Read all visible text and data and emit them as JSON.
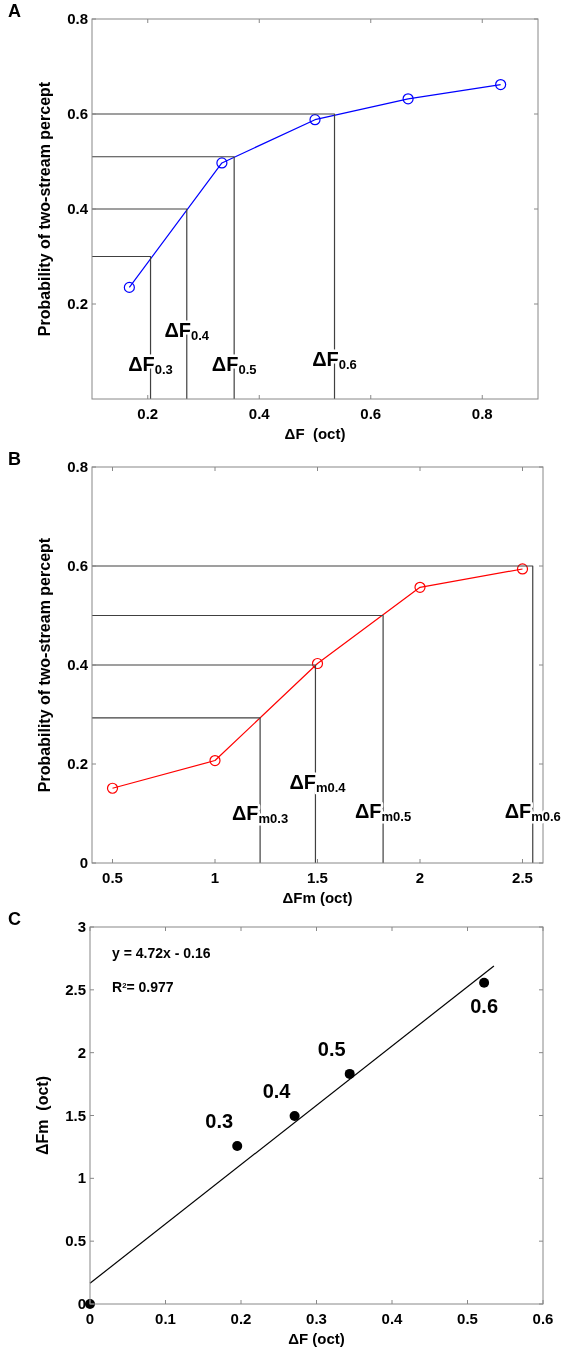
{
  "chart_data": [
    {
      "type": "line",
      "title": "A",
      "xlabel": "ΔF  (oct)",
      "ylabel": "Probability of two-stream percept",
      "xlim": [
        0.1,
        0.9
      ],
      "xticks": [
        0.2,
        0.4,
        0.6,
        0.8
      ],
      "ylim": [
        0,
        0.8
      ],
      "yticks": [
        0.2,
        0.4,
        0.6,
        0.8
      ],
      "grid": false,
      "series": [
        {
          "color": "#0000ff",
          "marker": "circle",
          "x": [
            0.167,
            0.333,
            0.5,
            0.667,
            0.833
          ],
          "values": [
            0.235,
            0.497,
            0.588,
            0.632,
            0.662
          ]
        },
        {
          "color": "#404040",
          "marker": "none",
          "x": [
            0.1,
            0.205,
            0.205
          ],
          "values": [
            0.3,
            0.3,
            0
          ]
        },
        {
          "color": "#404040",
          "marker": "none",
          "x": [
            0.1,
            0.27,
            0.27
          ],
          "values": [
            0.4,
            0.4,
            0
          ]
        },
        {
          "color": "#404040",
          "marker": "none",
          "x": [
            0.1,
            0.355,
            0.355
          ],
          "values": [
            0.51,
            0.51,
            0
          ]
        },
        {
          "color": "#404040",
          "marker": "none",
          "x": [
            0.1,
            0.535,
            0.535
          ],
          "values": [
            0.6,
            0.6,
            0
          ]
        }
      ],
      "annotations": [
        {
          "text": "ΔF$_{0.3}$",
          "x": 0.205,
          "y": 0.06
        },
        {
          "text": "ΔF$_{0.4}$",
          "x": 0.27,
          "y": 0.13
        },
        {
          "text": "ΔF$_{0.5}$",
          "x": 0.355,
          "y": 0.06
        },
        {
          "text": "ΔF$_{0.6}$",
          "x": 0.535,
          "y": 0.07
        }
      ]
    },
    {
      "type": "line",
      "title": "B",
      "xlabel": "ΔFm (oct)",
      "ylabel": "Probability of two-stream percept",
      "xlim": [
        0.4,
        2.6
      ],
      "xticks": [
        0.5,
        1,
        1.5,
        2,
        2.5
      ],
      "ylim": [
        0,
        0.8
      ],
      "yticks": [
        0,
        0.2,
        0.4,
        0.6,
        0.8
      ],
      "grid": false,
      "series": [
        {
          "color": "#ff0000",
          "marker": "circle",
          "x": [
            0.5,
            1,
            1.5,
            2,
            2.5
          ],
          "values": [
            0.151,
            0.207,
            0.403,
            0.557,
            0.594
          ]
        },
        {
          "color": "#404040",
          "marker": "none",
          "x": [
            0.4,
            1.22,
            1.22
          ],
          "values": [
            0.293,
            0.293,
            0
          ]
        },
        {
          "color": "#404040",
          "marker": "none",
          "x": [
            0.4,
            1.49,
            1.49
          ],
          "values": [
            0.4,
            0.4,
            0
          ]
        },
        {
          "color": "#404040",
          "marker": "none",
          "x": [
            0.4,
            1.82,
            1.82
          ],
          "values": [
            0.5,
            0.5,
            0
          ]
        },
        {
          "color": "#404040",
          "marker": "none",
          "x": [
            0.4,
            2.55,
            2.55
          ],
          "values": [
            0.6,
            0.6,
            0
          ]
        }
      ],
      "annotations": [
        {
          "text": "ΔF$_{m0.3}$",
          "x": 1.22,
          "y": 0.086
        },
        {
          "text": "ΔF$_{m0.4}$",
          "x": 1.5,
          "y": 0.149
        },
        {
          "text": "ΔF$_{m0.5}$",
          "x": 1.82,
          "y": 0.09
        },
        {
          "text": "ΔF$_{m0.6}$",
          "x": 2.55,
          "y": 0.09
        }
      ]
    },
    {
      "type": "scatter",
      "title": "C",
      "xlabel": "ΔF (oct)",
      "ylabel": "ΔFm  (oct)",
      "xlim": [
        0,
        0.6
      ],
      "xticks": [
        0,
        0.1,
        0.2,
        0.3,
        0.4,
        0.5,
        0.6
      ],
      "ylim": [
        0,
        3
      ],
      "yticks": [
        0,
        0.5,
        1,
        1.5,
        2,
        2.5,
        3
      ],
      "grid": false,
      "series": [
        {
          "color": "#000000",
          "marker": "circle",
          "x": [
            0,
            0.195,
            0.271,
            0.344,
            0.522
          ],
          "values": [
            0,
            1.258,
            1.496,
            1.831,
            2.557
          ]
        },
        {
          "type": "line",
          "color": "#000000",
          "marker": "none",
          "x": [
            0,
            0.535
          ],
          "values": [
            0.165,
            2.69
          ]
        }
      ],
      "annotations": [
        "y = 4.72x - 0.16",
        "R$^{2}$= 0.977",
        {
          "text": "0.3",
          "x": 0.195,
          "y": 1.258
        },
        {
          "text": "0.4",
          "x": 0.271,
          "y": 1.496
        },
        {
          "text": "0.5",
          "x": 0.344,
          "y": 1.831
        },
        {
          "text": "0.6",
          "x": 0.522,
          "y": 2.557
        }
      ]
    }
  ]
}
